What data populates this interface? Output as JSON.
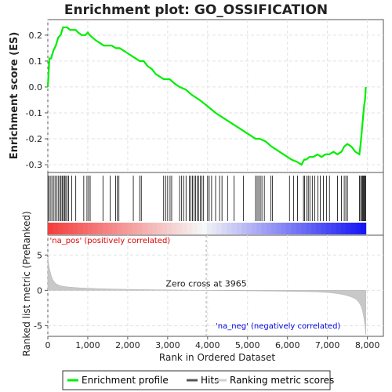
{
  "chart_data": {
    "type": "line",
    "title": "Enrichment plot: GO_OSSIFICATION",
    "es_panel": {
      "ylabel": "Enrichment score (ES)",
      "ylim": [
        -0.33,
        0.26
      ],
      "yticks": [
        0.2,
        0.1,
        0.0,
        -0.1,
        -0.2,
        -0.3
      ],
      "grid": true,
      "series": [
        {
          "name": "Enrichment profile",
          "color": "#00ee00",
          "x": [
            0,
            40,
            80,
            140,
            200,
            260,
            320,
            380,
            430,
            480,
            560,
            640,
            700,
            760,
            850,
            940,
            1000,
            1050,
            1120,
            1200,
            1300,
            1400,
            1500,
            1600,
            1700,
            1800,
            1900,
            2000,
            2100,
            2200,
            2300,
            2400,
            2500,
            2600,
            2700,
            2800,
            2900,
            3000,
            3050,
            3200,
            3300,
            3450,
            3600,
            3800,
            3965,
            4200,
            4500,
            4800,
            5100,
            5200,
            5300,
            5450,
            5600,
            5800,
            6000,
            6100,
            6250,
            6350,
            6420,
            6470,
            6550,
            6650,
            6750,
            6850,
            6950,
            7050,
            7150,
            7250,
            7350,
            7420,
            7500,
            7600,
            7700,
            7800,
            7830,
            7860,
            7890,
            7920,
            7940,
            7960
          ],
          "values": [
            0.0,
            0.11,
            0.11,
            0.14,
            0.16,
            0.19,
            0.2,
            0.23,
            0.23,
            0.23,
            0.22,
            0.22,
            0.22,
            0.21,
            0.2,
            0.2,
            0.21,
            0.2,
            0.19,
            0.18,
            0.17,
            0.16,
            0.16,
            0.16,
            0.15,
            0.15,
            0.14,
            0.13,
            0.12,
            0.11,
            0.1,
            0.1,
            0.08,
            0.07,
            0.05,
            0.04,
            0.03,
            0.03,
            0.03,
            0.01,
            0.0,
            -0.01,
            -0.03,
            -0.05,
            -0.07,
            -0.1,
            -0.13,
            -0.16,
            -0.19,
            -0.2,
            -0.2,
            -0.21,
            -0.23,
            -0.25,
            -0.27,
            -0.28,
            -0.29,
            -0.3,
            -0.28,
            -0.28,
            -0.27,
            -0.27,
            -0.26,
            -0.27,
            -0.26,
            -0.26,
            -0.25,
            -0.26,
            -0.25,
            -0.23,
            -0.22,
            -0.23,
            -0.25,
            -0.26,
            -0.22,
            -0.17,
            -0.12,
            -0.07,
            -0.05,
            0.0
          ]
        }
      ]
    },
    "hits": {
      "name": "Hits",
      "x": [
        20,
        60,
        100,
        140,
        180,
        220,
        260,
        300,
        330,
        360,
        390,
        420,
        450,
        480,
        520,
        600,
        700,
        900,
        980,
        1020,
        1060,
        1380,
        1560,
        1700,
        1740,
        1780,
        2140,
        2300,
        2340,
        2900,
        2950,
        3000,
        3060,
        3100,
        3300,
        3350,
        3400,
        3460,
        3540,
        3580,
        3620,
        3660,
        3700,
        3740,
        3780,
        3820,
        3860,
        3900,
        4000,
        4040,
        4100,
        4200,
        4300,
        4360,
        4500,
        4660,
        4900,
        5200,
        5240,
        5280,
        5320,
        5360,
        5420,
        5580,
        5620,
        6050,
        6150,
        6250,
        6400,
        6430,
        6480,
        6520,
        6560,
        6620,
        6680,
        6760,
        6820,
        6900,
        6980,
        7050,
        7250,
        7350,
        7420,
        7460,
        7500,
        7800,
        7830,
        7860,
        7880,
        7900,
        7920,
        7940,
        7960
      ]
    },
    "ranked_panel": {
      "ylabel": "Ranked list metric (PreRanked)",
      "xlabel": "Rank in Ordered Dataset",
      "ylim": [
        -6.5,
        7.8
      ],
      "yticks": [
        5,
        0,
        -5
      ],
      "xlim": [
        0,
        8400
      ],
      "xticks": [
        0,
        1000,
        2000,
        3000,
        4000,
        5000,
        6000,
        7000,
        8000
      ],
      "xtick_labels": [
        "0",
        "1,000",
        "2,000",
        "3,000",
        "4,000",
        "5,000",
        "6,000",
        "7,000",
        "8,000"
      ],
      "n": 7960,
      "zero_cross": 3965,
      "zero_cross_label": "Zero cross at 3965",
      "pos_label": "'na_pos' (positively correlated)",
      "neg_label": "'na_neg' (negatively correlated)",
      "grid": true
    },
    "legend": {
      "placement": "bottom",
      "items": [
        {
          "label": "Enrichment profile",
          "color": "#00ee00"
        },
        {
          "label": "Hits",
          "color": "#000000"
        },
        {
          "label": "Ranking metric scores",
          "color": "#c8c8c8"
        }
      ]
    }
  }
}
